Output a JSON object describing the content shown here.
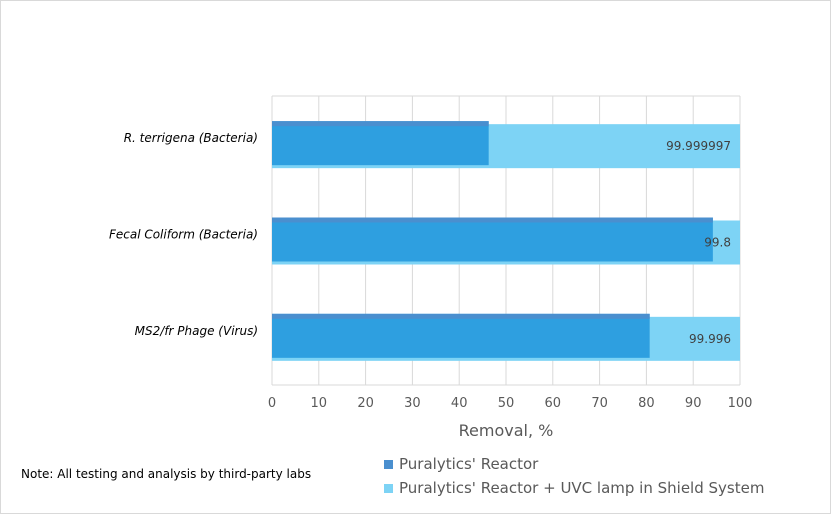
{
  "chart_data": {
    "type": "bar",
    "orientation": "horizontal",
    "categories": [
      "R. terrigena (Bacteria)",
      "Fecal Coliform (Bacteria)",
      "MS2/fr Phage (Virus)"
    ],
    "series": [
      {
        "name": "Puralytics' Reactor",
        "values": [
          46.3,
          94.2,
          80.7
        ],
        "color": "#2e9fe0",
        "edge_color": "#4a8fcf"
      },
      {
        "name": "Puralytics' Reactor + UVC lamp in Shield System",
        "values": [
          100,
          100,
          100
        ],
        "color": "#7dd3f5",
        "data_labels": [
          "99.999997",
          "99.8",
          "99.996"
        ]
      }
    ],
    "xlabel": "Removal, %",
    "xlim": [
      0,
      100
    ],
    "xticks": [
      "0",
      "10",
      "20",
      "30",
      "40",
      "50",
      "60",
      "70",
      "80",
      "90",
      "100"
    ],
    "grid": true,
    "legend_position": "bottom"
  },
  "note": "Note: All testing and analysis by third-party labs"
}
